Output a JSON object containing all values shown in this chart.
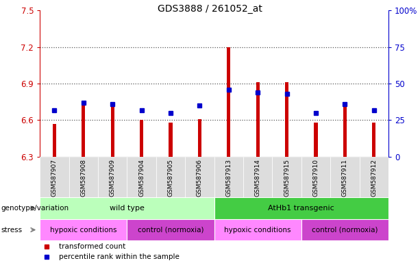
{
  "title": "GDS3888 / 261052_at",
  "samples": [
    "GSM587907",
    "GSM587908",
    "GSM587909",
    "GSM587904",
    "GSM587905",
    "GSM587906",
    "GSM587913",
    "GSM587914",
    "GSM587915",
    "GSM587910",
    "GSM587911",
    "GSM587912"
  ],
  "bar_values": [
    6.57,
    6.72,
    6.72,
    6.6,
    6.58,
    6.61,
    7.2,
    6.91,
    6.91,
    6.58,
    6.72,
    6.58
  ],
  "bar_base": 6.3,
  "percentile_values": [
    32,
    37,
    36,
    32,
    30,
    35,
    46,
    44,
    43,
    30,
    36,
    32
  ],
  "ylim_left": [
    6.3,
    7.5
  ],
  "ylim_right": [
    0,
    100
  ],
  "yticks_left": [
    6.3,
    6.6,
    6.9,
    7.2,
    7.5
  ],
  "yticks_right": [
    0,
    25,
    50,
    75,
    100
  ],
  "ytick_labels_left": [
    "6.3",
    "6.6",
    "6.9",
    "7.2",
    "7.5"
  ],
  "ytick_labels_right": [
    "0",
    "25",
    "50",
    "75",
    "100%"
  ],
  "hlines": [
    6.6,
    6.9,
    7.2
  ],
  "bar_color": "#cc0000",
  "percentile_color": "#0000cc",
  "bar_width": 0.12,
  "genotype_groups": [
    {
      "label": "wild type",
      "start": 0,
      "end": 5,
      "color": "#bbffbb"
    },
    {
      "label": "AtHb1 transgenic",
      "start": 6,
      "end": 11,
      "color": "#44cc44"
    }
  ],
  "stress_groups": [
    {
      "label": "hypoxic conditions",
      "start": 0,
      "end": 2,
      "color": "#ff88ff"
    },
    {
      "label": "control (normoxia)",
      "start": 3,
      "end": 5,
      "color": "#cc44cc"
    },
    {
      "label": "hypoxic conditions",
      "start": 6,
      "end": 8,
      "color": "#ff88ff"
    },
    {
      "label": "control (normoxia)",
      "start": 9,
      "end": 11,
      "color": "#cc44cc"
    }
  ],
  "legend_items": [
    {
      "label": "transformed count",
      "color": "#cc0000"
    },
    {
      "label": "percentile rank within the sample",
      "color": "#0000cc"
    }
  ],
  "left_axis_color": "#cc0000",
  "right_axis_color": "#0000cc",
  "genotype_label": "genotype/variation",
  "stress_label": "stress",
  "xticklabel_bg": "#dddddd",
  "grid_color": "#555555"
}
